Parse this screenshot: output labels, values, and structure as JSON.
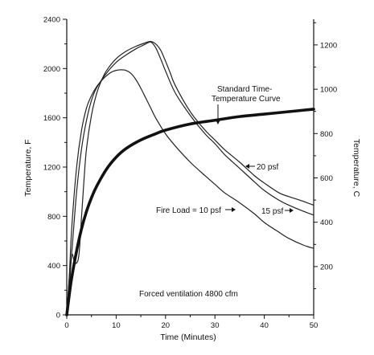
{
  "chart_data": {
    "type": "line",
    "xlabel": "Time (Minutes)",
    "ylabel_left": "Temperature, F",
    "ylabel_right": "Temperature, C",
    "xlim": [
      0,
      50
    ],
    "ylim_left": [
      0,
      2400
    ],
    "ylim_right_celsius_at_bottom": -17.78,
    "x_ticks": [
      0,
      10,
      20,
      30,
      40,
      50
    ],
    "y_ticks_left": [
      0,
      400,
      800,
      1200,
      1600,
      2000,
      2400
    ],
    "y_ticks_right": [
      200,
      400,
      600,
      800,
      1000,
      1200
    ],
    "grid": false,
    "legend": "none",
    "series": [
      {
        "name": "Fire Load = 10 psf",
        "style": "thin",
        "x": [
          0,
          0.5,
          1,
          2,
          3,
          4,
          5,
          6,
          7,
          8,
          9,
          10,
          11,
          12,
          13,
          14,
          15,
          16,
          17,
          18,
          20,
          22,
          25,
          28,
          30,
          32,
          35,
          38,
          40,
          43,
          45,
          48,
          50
        ],
        "y": [
          0,
          300,
          700,
          1200,
          1500,
          1680,
          1780,
          1850,
          1900,
          1940,
          1970,
          1985,
          1990,
          1985,
          1960,
          1910,
          1840,
          1760,
          1680,
          1600,
          1470,
          1370,
          1240,
          1130,
          1060,
          990,
          910,
          820,
          750,
          670,
          620,
          565,
          540
        ]
      },
      {
        "name": "15 psf",
        "style": "thin",
        "x": [
          0,
          0.5,
          1,
          2,
          3,
          4,
          5,
          6,
          8,
          10,
          12,
          14,
          15,
          16,
          17,
          18,
          19,
          20,
          22,
          25,
          28,
          30,
          32,
          35,
          38,
          40,
          43,
          45,
          48,
          50
        ],
        "y": [
          0,
          300,
          500,
          1000,
          1350,
          1580,
          1740,
          1840,
          1960,
          2050,
          2110,
          2160,
          2180,
          2200,
          2215,
          2170,
          2080,
          1980,
          1800,
          1620,
          1470,
          1390,
          1300,
          1190,
          1080,
          1010,
          930,
          890,
          840,
          810
        ]
      },
      {
        "name": "20 psf",
        "style": "thin",
        "x": [
          0,
          0.5,
          1,
          1.5,
          2,
          2.5,
          3,
          3.5,
          4,
          5,
          6,
          7,
          8,
          10,
          12,
          14,
          16,
          17,
          18,
          19,
          20,
          21,
          22,
          25,
          28,
          30,
          32,
          35,
          38,
          40,
          43,
          45,
          48,
          50
        ],
        "y": [
          0,
          200,
          480,
          440,
          420,
          500,
          800,
          1100,
          1350,
          1620,
          1790,
          1900,
          1980,
          2080,
          2140,
          2180,
          2210,
          2220,
          2200,
          2150,
          2060,
          1960,
          1860,
          1650,
          1500,
          1420,
          1340,
          1240,
          1130,
          1070,
          990,
          960,
          920,
          890
        ]
      },
      {
        "name": "Standard Time-Temperature Curve",
        "style": "bold",
        "x": [
          0,
          0.5,
          1,
          2,
          3,
          4,
          5,
          6,
          8,
          10,
          12,
          15,
          18,
          20,
          25,
          30,
          35,
          40,
          45,
          50
        ],
        "y": [
          0,
          160,
          300,
          520,
          700,
          840,
          950,
          1040,
          1180,
          1280,
          1350,
          1420,
          1470,
          1500,
          1550,
          1580,
          1610,
          1630,
          1650,
          1670
        ]
      }
    ],
    "annotations": [
      {
        "text_line1": "Standard Time-",
        "text_line2": "Temperature Curve"
      },
      {
        "text": "20 psf"
      },
      {
        "text": "Fire Load = 10 psf"
      },
      {
        "text": "15 psf"
      },
      {
        "text": "Forced ventilation 4800 cfm"
      }
    ]
  }
}
